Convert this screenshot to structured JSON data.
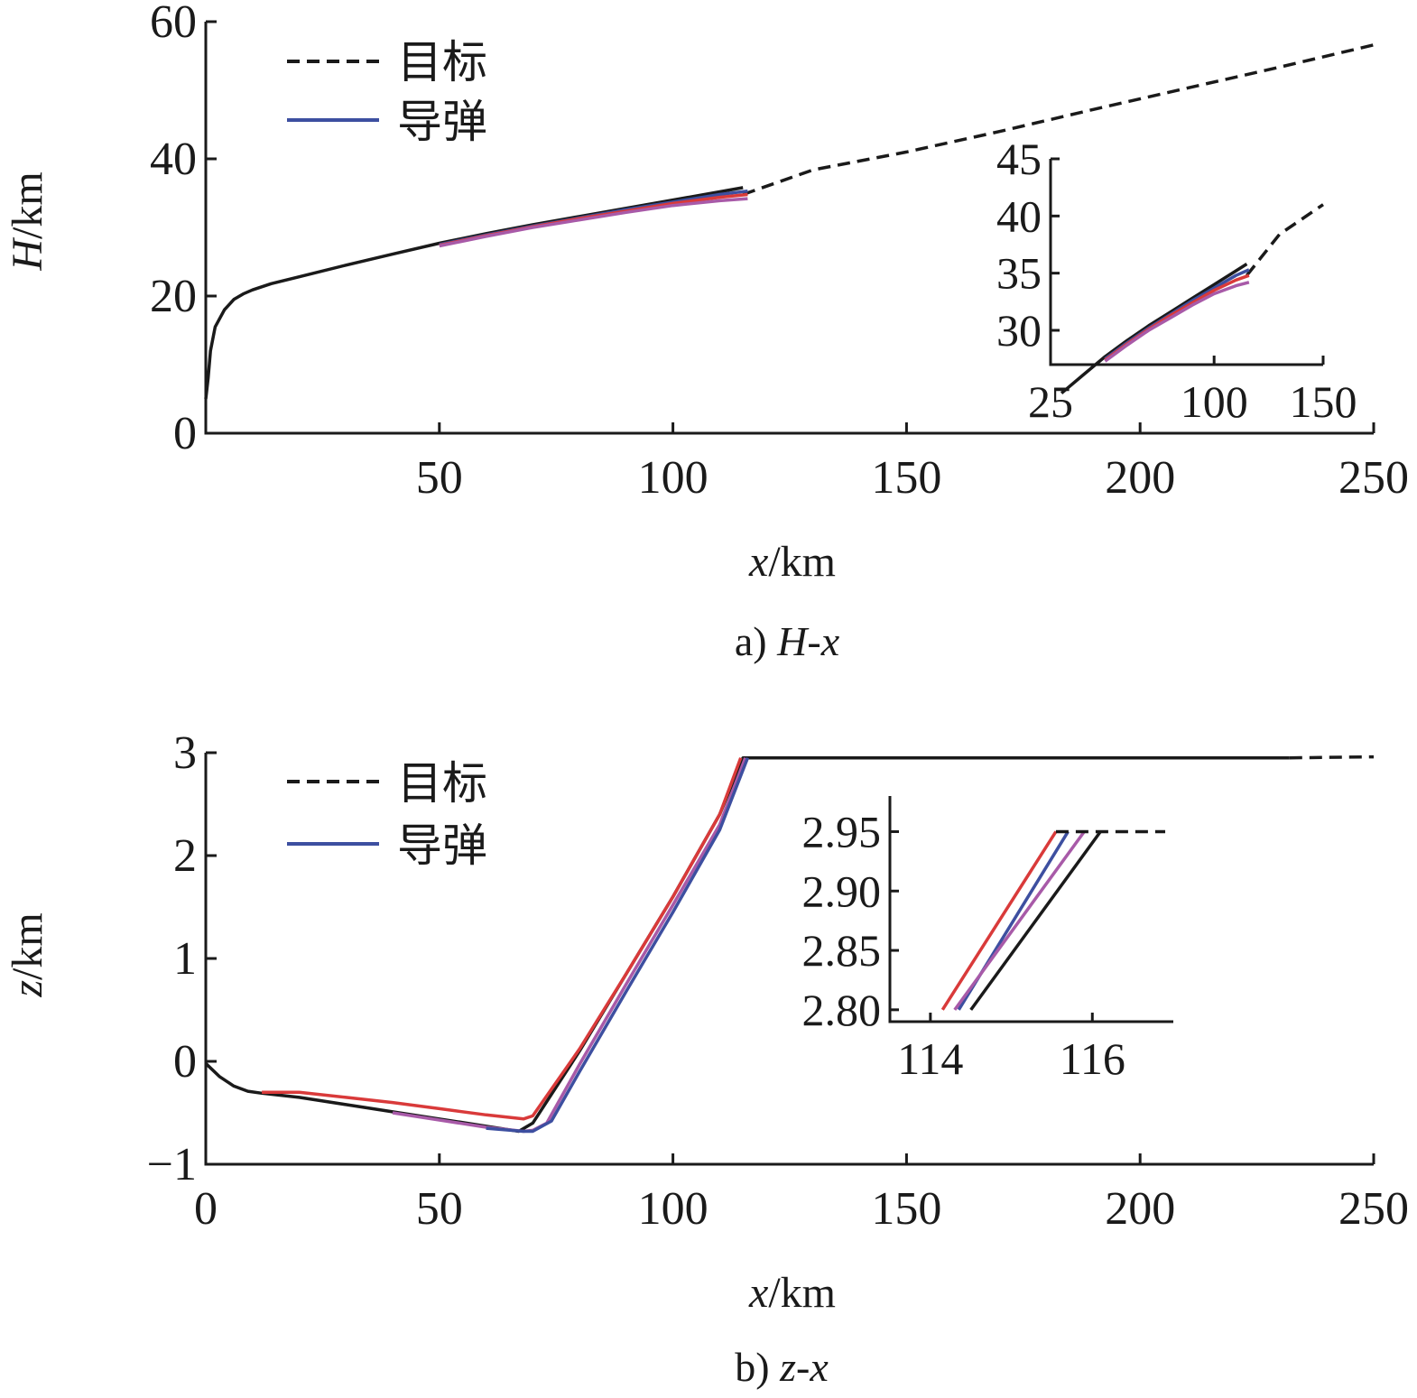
{
  "chart_data": [
    {
      "type": "line",
      "caption": "a) H-x",
      "caption_prefix": "a) ",
      "caption_main": "H",
      "caption_sep": "-",
      "caption_var": "x",
      "xlabel_var": "x",
      "xlabel_unit": "/km",
      "ylabel_var": "H",
      "ylabel_unit": "/km",
      "xlim": [
        0,
        250
      ],
      "ylim": [
        0,
        60
      ],
      "xticks": [
        "50",
        "100",
        "150",
        "200",
        "250"
      ],
      "yticks": [
        "0",
        "20",
        "40",
        "60"
      ],
      "legend": [
        {
          "label": "目标",
          "style": "dashed",
          "color": "#1a1a1a"
        },
        {
          "label": "导弹",
          "style": "solid",
          "color": "#3d4fa0"
        }
      ],
      "series": [
        {
          "name": "目标",
          "color": "#1a1a1a",
          "style": "dashed",
          "x": [
            115,
            130,
            150,
            170,
            190,
            210,
            230,
            250
          ],
          "y": [
            34.8,
            38.4,
            41.0,
            44.0,
            47.2,
            50.3,
            53.4,
            56.6
          ]
        },
        {
          "color": "#1a1a1a",
          "style": "solid",
          "x": [
            0,
            0.5,
            1,
            2,
            4,
            6,
            8,
            10,
            14,
            20,
            30,
            40,
            50,
            60,
            70,
            80,
            90,
            100,
            110,
            115
          ],
          "y": [
            5,
            8,
            12,
            15.5,
            18,
            19.5,
            20.3,
            20.9,
            21.8,
            22.8,
            24.5,
            26.1,
            27.7,
            29.1,
            30.4,
            31.6,
            32.8,
            34.0,
            35.2,
            35.8
          ]
        },
        {
          "color": "#3d4fa0",
          "style": "solid",
          "x": [
            50,
            60,
            70,
            80,
            90,
            100,
            110,
            116
          ],
          "y": [
            27.5,
            28.9,
            30.2,
            31.4,
            32.6,
            33.7,
            34.8,
            35.3
          ]
        },
        {
          "color": "#d93a3a",
          "style": "solid",
          "x": [
            50,
            60,
            70,
            80,
            90,
            100,
            110,
            116
          ],
          "y": [
            27.4,
            28.8,
            30.1,
            31.3,
            32.4,
            33.5,
            34.4,
            34.8
          ]
        },
        {
          "color": "#a85aa8",
          "style": "solid",
          "x": [
            50,
            60,
            70,
            80,
            90,
            100,
            110,
            116
          ],
          "y": [
            27.3,
            28.7,
            30.0,
            31.1,
            32.2,
            33.2,
            33.9,
            34.2
          ]
        }
      ],
      "inset": {
        "xlim": [
          25,
          150
        ],
        "ylim": [
          27,
          45
        ],
        "xticks": [
          "25",
          "100",
          "150"
        ],
        "yticks": [
          "30",
          "35",
          "40",
          "45"
        ]
      }
    },
    {
      "type": "line",
      "caption": "b) z-x",
      "caption_prefix": "b) ",
      "caption_main": "z",
      "caption_sep": "-",
      "caption_var": "x",
      "xlabel_var": "x",
      "xlabel_unit": "/km",
      "ylabel_var": "z",
      "ylabel_unit": "/km",
      "xlim": [
        0,
        250
      ],
      "ylim": [
        -1,
        3
      ],
      "xticks": [
        "0",
        "50",
        "100",
        "150",
        "200",
        "250"
      ],
      "yticks": [
        "−1",
        "0",
        "1",
        "2",
        "3"
      ],
      "legend": [
        {
          "label": "目标",
          "style": "dashed",
          "color": "#1a1a1a"
        },
        {
          "label": "导弹",
          "style": "solid",
          "color": "#3d4fa0"
        }
      ],
      "series": [
        {
          "name": "目标",
          "color": "#1a1a1a",
          "style": "dashed",
          "x": [
            232,
            250
          ],
          "y": [
            2.95,
            2.96
          ]
        },
        {
          "color": "#1a1a1a",
          "style": "solid",
          "x": [
            0,
            3,
            6,
            9,
            12,
            20,
            30,
            40,
            50,
            60,
            67,
            70,
            80,
            90,
            100,
            110,
            115,
            150,
            200,
            232
          ],
          "y": [
            -0.02,
            -0.15,
            -0.24,
            -0.29,
            -0.31,
            -0.35,
            -0.42,
            -0.49,
            -0.56,
            -0.63,
            -0.68,
            -0.6,
            0.1,
            0.85,
            1.6,
            2.4,
            2.95,
            2.95,
            2.95,
            2.95
          ]
        },
        {
          "color": "#d93a3a",
          "style": "solid",
          "x": [
            12,
            20,
            30,
            40,
            50,
            60,
            68,
            70,
            80,
            90,
            100,
            110,
            114.5
          ],
          "y": [
            -0.3,
            -0.3,
            -0.35,
            -0.4,
            -0.46,
            -0.52,
            -0.56,
            -0.53,
            0.12,
            0.85,
            1.6,
            2.4,
            2.95
          ]
        },
        {
          "color": "#a85aa8",
          "style": "solid",
          "x": [
            40,
            50,
            60,
            68,
            70,
            73,
            80,
            90,
            100,
            110,
            115.5
          ],
          "y": [
            -0.5,
            -0.57,
            -0.64,
            -0.68,
            -0.67,
            -0.6,
            -0.03,
            0.75,
            1.52,
            2.3,
            2.95
          ]
        },
        {
          "color": "#3d4fa0",
          "style": "solid",
          "x": [
            60,
            68,
            70,
            74,
            80,
            90,
            100,
            110,
            116
          ],
          "y": [
            -0.65,
            -0.68,
            -0.68,
            -0.58,
            -0.1,
            0.68,
            1.45,
            2.25,
            2.95
          ]
        }
      ],
      "inset": {
        "xlim": [
          113.5,
          117
        ],
        "ylim": [
          2.79,
          2.98
        ],
        "xticks": [
          "114",
          "116"
        ],
        "yticks": [
          "2.80",
          "2.85",
          "2.90",
          "2.95"
        ]
      }
    }
  ]
}
